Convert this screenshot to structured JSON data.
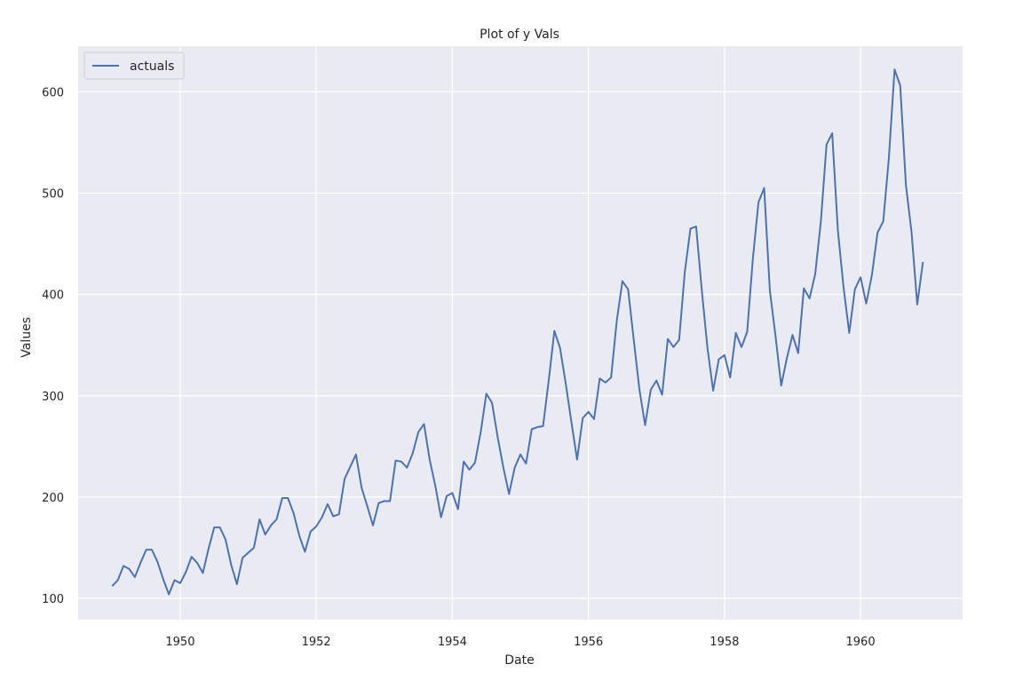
{
  "chart_data": {
    "type": "line",
    "title": "Plot of y Vals",
    "xlabel": "Date",
    "ylabel": "Values",
    "xlim": [
      1948.5,
      1961.5
    ],
    "ylim": [
      79,
      645
    ],
    "xticks": [
      1950,
      1952,
      1954,
      1956,
      1958,
      1960
    ],
    "yticks": [
      100,
      200,
      300,
      400,
      500,
      600
    ],
    "grid": true,
    "legend_position": "top-left",
    "background_color": "#eaeaf2",
    "grid_color": "#ffffff",
    "series": [
      {
        "name": "actuals",
        "color": "#4c72b0",
        "x_start": "1949-01",
        "x_step": "month",
        "values": [
          112,
          118,
          132,
          129,
          121,
          135,
          148,
          148,
          136,
          119,
          104,
          118,
          115,
          126,
          141,
          135,
          125,
          149,
          170,
          170,
          158,
          133,
          114,
          140,
          145,
          150,
          178,
          163,
          172,
          178,
          199,
          199,
          184,
          162,
          146,
          166,
          171,
          180,
          193,
          181,
          183,
          218,
          230,
          242,
          209,
          191,
          172,
          194,
          196,
          196,
          236,
          235,
          229,
          243,
          264,
          272,
          237,
          211,
          180,
          201,
          204,
          188,
          235,
          227,
          234,
          264,
          302,
          293,
          259,
          229,
          203,
          229,
          242,
          233,
          267,
          269,
          270,
          315,
          364,
          347,
          312,
          274,
          237,
          278,
          284,
          277,
          317,
          313,
          318,
          374,
          413,
          405,
          355,
          306,
          271,
          306,
          315,
          301,
          356,
          348,
          355,
          422,
          465,
          467,
          404,
          347,
          305,
          336,
          340,
          318,
          362,
          348,
          363,
          435,
          491,
          505,
          404,
          359,
          310,
          337,
          360,
          342,
          406,
          396,
          420,
          472,
          548,
          559,
          463,
          407,
          362,
          405,
          417,
          391,
          419,
          461,
          472,
          535,
          622,
          606,
          508,
          461,
          390,
          432
        ]
      }
    ]
  }
}
